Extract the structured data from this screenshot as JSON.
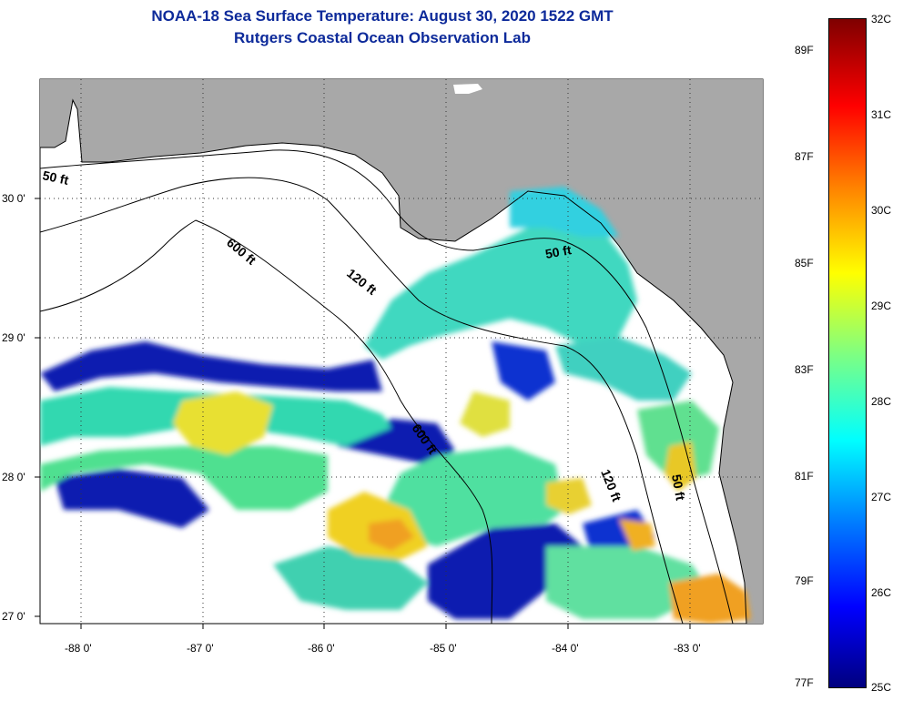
{
  "title": {
    "line1": "NOAA-18 Sea Surface Temperature:  August 30, 2020 1522 GMT",
    "line2": "Rutgers Coastal Ocean Observation Lab"
  },
  "latitude_labels": [
    "30 0'",
    "29 0'",
    "28 0'",
    "27 0'"
  ],
  "longitude_labels": [
    "-88 0'",
    "-87 0'",
    "-86 0'",
    "-85 0'",
    "-84 0'",
    "-83 0'"
  ],
  "contours": {
    "c50_west": "50 ft",
    "c600": "600 ft",
    "c120": "120 ft",
    "c50_east": "50 ft",
    "c600_b": "600 ft",
    "c120_b": "120 ft",
    "c50_b": "50 ft"
  },
  "colorbar": {
    "fahrenheit": [
      "89F",
      "87F",
      "85F",
      "83F",
      "81F",
      "79F",
      "77F"
    ],
    "celsius": [
      "32C",
      "31C",
      "30C",
      "29C",
      "28C",
      "27C",
      "26C",
      "25C"
    ]
  },
  "colors": {
    "land": "#a8a8a8",
    "title": "#0d2a9a"
  }
}
